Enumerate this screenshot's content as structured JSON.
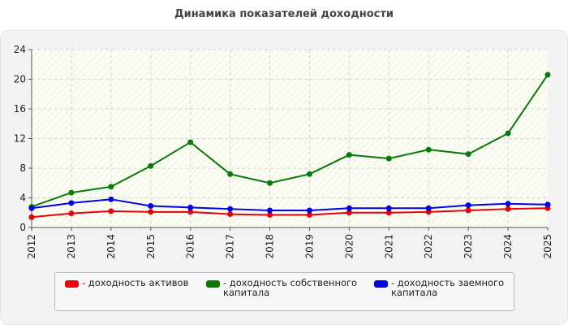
{
  "chart_data": {
    "type": "line",
    "title": "Динамика показателей доходности",
    "xlabel": "",
    "ylabel": "",
    "categories": [
      "2012",
      "2013",
      "2014",
      "2015",
      "2016",
      "2017",
      "2018",
      "2019",
      "2020",
      "2021",
      "2022",
      "2023",
      "2024",
      "2025"
    ],
    "ylim": [
      0,
      24
    ],
    "yticks": [
      "0",
      "4",
      "8",
      "12",
      "16",
      "20",
      "24"
    ],
    "grid": true,
    "legend_position": "bottom",
    "series": [
      {
        "name": "- доходность активов",
        "color": "#e8000b",
        "values": [
          1.4,
          1.9,
          2.2,
          2.1,
          2.1,
          1.8,
          1.7,
          1.7,
          2.0,
          2.0,
          2.1,
          2.3,
          2.5,
          2.6
        ]
      },
      {
        "name": "- доходность собственного\nкапитала",
        "color": "#077b07",
        "values": [
          2.8,
          4.7,
          5.5,
          8.3,
          11.5,
          7.2,
          6.0,
          7.2,
          9.8,
          9.3,
          10.5,
          9.9,
          12.7,
          20.6
        ]
      },
      {
        "name": "- доходность заемного\nкапитала",
        "color": "#0000e6",
        "values": [
          2.6,
          3.3,
          3.8,
          2.9,
          2.7,
          2.5,
          2.3,
          2.3,
          2.6,
          2.6,
          2.6,
          3.0,
          3.2,
          3.1
        ]
      }
    ]
  }
}
